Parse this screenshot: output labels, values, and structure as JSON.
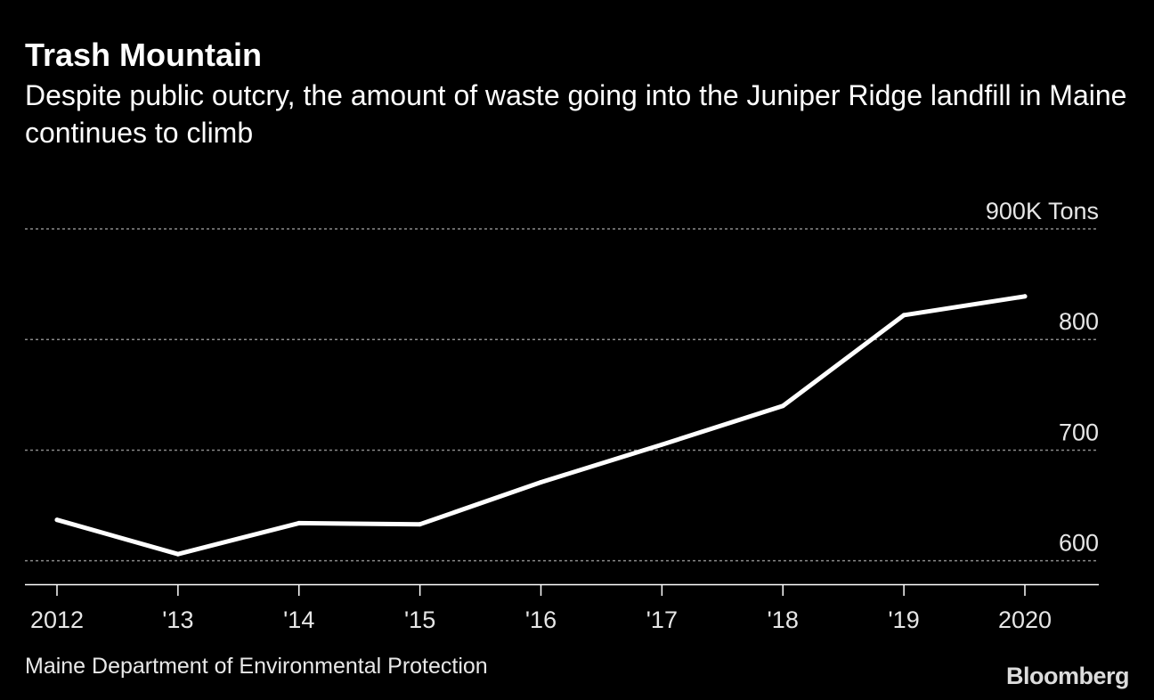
{
  "title": "Trash Mountain",
  "subtitle": "Despite public outcry, the amount of waste going into the Juniper Ridge landfill in Maine continues to climb",
  "source": "Maine Department of Environmental Protection",
  "brand": "Bloomberg",
  "colors": {
    "background": "#000000",
    "line": "#ffffff",
    "grid": "#8a8a8a",
    "text": "#ffffff"
  },
  "chart_data": {
    "type": "line",
    "title": "Trash Mountain",
    "unit_label": "900K Tons",
    "x": [
      2012,
      2013,
      2014,
      2015,
      2016,
      2017,
      2018,
      2019,
      2020
    ],
    "x_tick_labels": [
      "2012",
      "'13",
      "'14",
      "'15",
      "'16",
      "'17",
      "'18",
      "'19",
      "2020"
    ],
    "series": [
      {
        "values": [
          637,
          606,
          634,
          633,
          671,
          705,
          740,
          822,
          839
        ]
      }
    ],
    "ylim": [
      578,
      900
    ],
    "y_ticks": [
      600,
      700,
      800,
      900
    ],
    "y_tick_labels": [
      "600",
      "700",
      "800",
      "900K Tons"
    ],
    "grid": "horizontal-dotted",
    "legend": "none"
  }
}
